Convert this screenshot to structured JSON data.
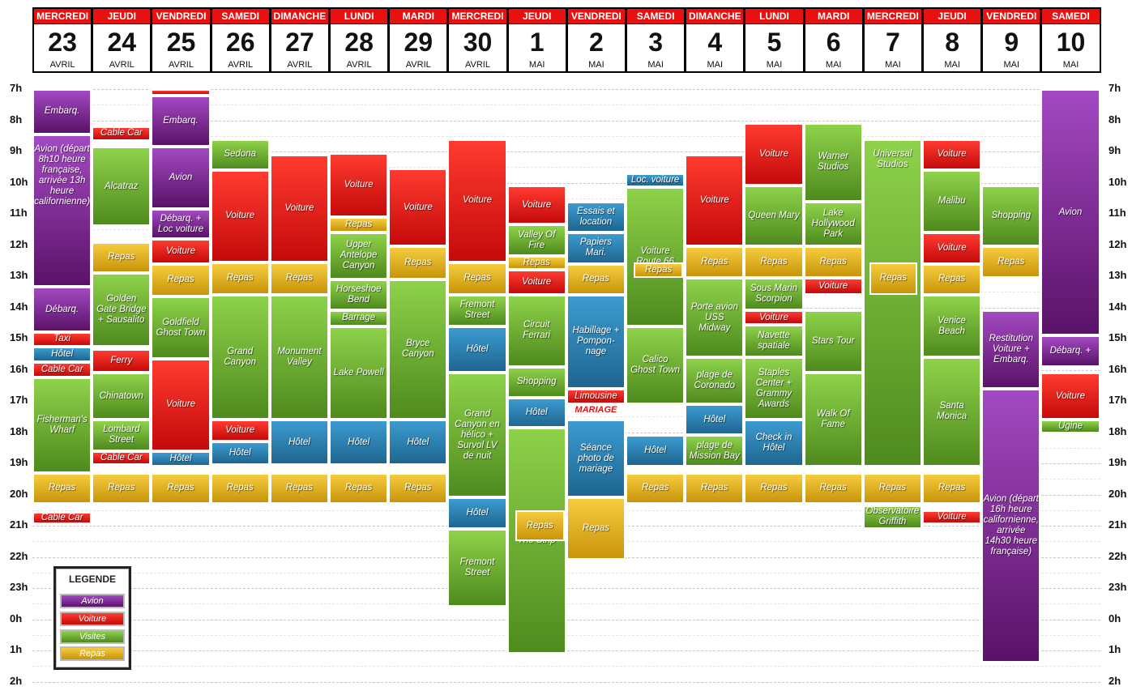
{
  "days": [
    {
      "name": "MERCREDI",
      "num": "23",
      "month": "AVRIL"
    },
    {
      "name": "JEUDI",
      "num": "24",
      "month": "AVRIL"
    },
    {
      "name": "VENDREDI",
      "num": "25",
      "month": "AVRIL"
    },
    {
      "name": "SAMEDI",
      "num": "26",
      "month": "AVRIL"
    },
    {
      "name": "DIMANCHE",
      "num": "27",
      "month": "AVRIL"
    },
    {
      "name": "LUNDI",
      "num": "28",
      "month": "AVRIL"
    },
    {
      "name": "MARDI",
      "num": "29",
      "month": "AVRIL"
    },
    {
      "name": "MERCREDI",
      "num": "30",
      "month": "AVRIL"
    },
    {
      "name": "JEUDI",
      "num": "1",
      "month": "MAI"
    },
    {
      "name": "VENDREDI",
      "num": "2",
      "month": "MAI"
    },
    {
      "name": "SAMEDI",
      "num": "3",
      "month": "MAI"
    },
    {
      "name": "DIMANCHE",
      "num": "4",
      "month": "MAI"
    },
    {
      "name": "LUNDI",
      "num": "5",
      "month": "MAI"
    },
    {
      "name": "MARDI",
      "num": "6",
      "month": "MAI"
    },
    {
      "name": "MERCREDI",
      "num": "7",
      "month": "MAI"
    },
    {
      "name": "JEUDI",
      "num": "8",
      "month": "MAI"
    },
    {
      "name": "VENDREDI",
      "num": "9",
      "month": "MAI"
    },
    {
      "name": "SAMEDI",
      "num": "10",
      "month": "MAI"
    }
  ],
  "hours": [
    "7h",
    "8h",
    "9h",
    "10h",
    "11h",
    "12h",
    "13h",
    "14h",
    "15h",
    "16h",
    "17h",
    "18h",
    "19h",
    "20h",
    "21h",
    "22h",
    "23h",
    "0h",
    "1h",
    "2h"
  ],
  "colors": {
    "avion": "#7b2a92",
    "voiture": "#e01a14",
    "visite": "#6cae33",
    "repas": "#e2b020",
    "hotel": "#2f82b4"
  },
  "events": [
    {
      "day": 0,
      "start": 7.0,
      "end": 8.45,
      "type": "avion",
      "label": "Embarq."
    },
    {
      "day": 0,
      "start": 8.45,
      "end": 13.35,
      "type": "avion",
      "label": "Avion (départ 8h10 heure française, arrivée 13h heure californienne)"
    },
    {
      "day": 0,
      "start": 13.35,
      "end": 14.8,
      "type": "avion",
      "label": "Débarq."
    },
    {
      "day": 0,
      "start": 14.8,
      "end": 15.25,
      "type": "taxi",
      "label": "Taxi"
    },
    {
      "day": 0,
      "start": 15.25,
      "end": 15.75,
      "type": "hotel",
      "label": "Hôtel"
    },
    {
      "day": 0,
      "start": 15.75,
      "end": 16.25,
      "type": "voiture",
      "label": "Cable Car"
    },
    {
      "day": 0,
      "start": 16.25,
      "end": 19.3,
      "type": "visite",
      "label": "Fisherman's Wharf"
    },
    {
      "day": 0,
      "start": 19.3,
      "end": 20.3,
      "type": "repas",
      "label": "Repas"
    },
    {
      "day": 0,
      "start": 20.55,
      "end": 20.95,
      "type": "voiture",
      "label": "Cable Car"
    },
    {
      "day": 1,
      "start": 8.2,
      "end": 8.65,
      "type": "voiture",
      "label": "Cable Car"
    },
    {
      "day": 1,
      "start": 8.85,
      "end": 11.4,
      "type": "visite",
      "label": "Alcatraz"
    },
    {
      "day": 1,
      "start": 11.9,
      "end": 12.9,
      "type": "repas",
      "label": "Repas"
    },
    {
      "day": 1,
      "start": 12.9,
      "end": 15.25,
      "type": "visite",
      "label": "Golden Gate Bridge + Sausalito"
    },
    {
      "day": 1,
      "start": 15.35,
      "end": 16.1,
      "type": "voiture",
      "label": "Ferry"
    },
    {
      "day": 1,
      "start": 16.1,
      "end": 17.6,
      "type": "visite",
      "label": "Chinatown"
    },
    {
      "day": 1,
      "start": 17.6,
      "end": 18.6,
      "type": "visite",
      "label": "Lombard Street"
    },
    {
      "day": 1,
      "start": 18.6,
      "end": 19.05,
      "type": "voiture",
      "label": "Cable Car"
    },
    {
      "day": 1,
      "start": 19.3,
      "end": 20.3,
      "type": "repas",
      "label": "Repas"
    },
    {
      "day": 2,
      "start": 7.0,
      "end": 7.2,
      "type": "voiture",
      "label": ""
    },
    {
      "day": 2,
      "start": 7.2,
      "end": 8.85,
      "type": "avion",
      "label": "Embarq."
    },
    {
      "day": 2,
      "start": 8.85,
      "end": 10.85,
      "type": "avion",
      "label": "Avion"
    },
    {
      "day": 2,
      "start": 10.85,
      "end": 11.8,
      "type": "avion",
      "label": "Débarq. + Loc voiture"
    },
    {
      "day": 2,
      "start": 11.8,
      "end": 12.6,
      "type": "voiture",
      "label": "Voiture"
    },
    {
      "day": 2,
      "start": 12.6,
      "end": 13.65,
      "type": "repas",
      "label": "Repas"
    },
    {
      "day": 2,
      "start": 13.65,
      "end": 15.65,
      "type": "visite",
      "label": "Goldfield Ghost Town"
    },
    {
      "day": 2,
      "start": 15.65,
      "end": 18.6,
      "type": "voiture",
      "label": "Voiture"
    },
    {
      "day": 2,
      "start": 18.6,
      "end": 19.1,
      "type": "hotel",
      "label": "Hôtel"
    },
    {
      "day": 2,
      "start": 19.3,
      "end": 20.3,
      "type": "repas",
      "label": "Repas"
    },
    {
      "day": 3,
      "start": 8.6,
      "end": 9.6,
      "type": "visite",
      "label": "Sedona"
    },
    {
      "day": 3,
      "start": 9.6,
      "end": 12.55,
      "type": "voiture",
      "label": "Voiture"
    },
    {
      "day": 3,
      "start": 12.55,
      "end": 13.6,
      "type": "repas",
      "label": "Repas"
    },
    {
      "day": 3,
      "start": 13.6,
      "end": 17.6,
      "type": "visite",
      "label": "Grand Canyon"
    },
    {
      "day": 3,
      "start": 17.6,
      "end": 18.3,
      "type": "voiture",
      "label": "Voiture"
    },
    {
      "day": 3,
      "start": 18.3,
      "end": 19.05,
      "type": "hotel",
      "label": "Hôtel"
    },
    {
      "day": 3,
      "start": 19.3,
      "end": 20.3,
      "type": "repas",
      "label": "Repas"
    },
    {
      "day": 4,
      "start": 9.1,
      "end": 12.55,
      "type": "voiture",
      "label": "Voiture"
    },
    {
      "day": 4,
      "start": 12.55,
      "end": 13.6,
      "type": "repas",
      "label": "Repas"
    },
    {
      "day": 4,
      "start": 13.6,
      "end": 17.6,
      "type": "visite",
      "label": "Monument Valley"
    },
    {
      "day": 4,
      "start": 17.6,
      "end": 19.05,
      "type": "hotel",
      "label": "Hôtel"
    },
    {
      "day": 4,
      "start": 19.3,
      "end": 20.3,
      "type": "repas",
      "label": "Repas"
    },
    {
      "day": 5,
      "start": 9.05,
      "end": 11.1,
      "type": "voiture",
      "label": "Voiture"
    },
    {
      "day": 5,
      "start": 11.1,
      "end": 11.6,
      "type": "repas",
      "label": "Repas"
    },
    {
      "day": 5,
      "start": 11.6,
      "end": 13.1,
      "type": "visite",
      "label": "Upper Antelope Canyon"
    },
    {
      "day": 5,
      "start": 13.1,
      "end": 14.1,
      "type": "visite",
      "label": "Horseshoe Bend"
    },
    {
      "day": 5,
      "start": 14.1,
      "end": 14.6,
      "type": "visite",
      "label": "Barrage"
    },
    {
      "day": 5,
      "start": 14.6,
      "end": 17.6,
      "type": "visite",
      "label": "Lake Powell"
    },
    {
      "day": 5,
      "start": 17.6,
      "end": 19.05,
      "type": "hotel",
      "label": "Hôtel"
    },
    {
      "day": 5,
      "start": 19.3,
      "end": 20.3,
      "type": "repas",
      "label": "Repas"
    },
    {
      "day": 6,
      "start": 9.55,
      "end": 12.05,
      "type": "voiture",
      "label": "Voiture"
    },
    {
      "day": 6,
      "start": 12.05,
      "end": 13.1,
      "type": "repas",
      "label": "Repas"
    },
    {
      "day": 6,
      "start": 13.1,
      "end": 17.6,
      "type": "visite",
      "label": "Bryce Canyon"
    },
    {
      "day": 6,
      "start": 17.6,
      "end": 19.05,
      "type": "hotel",
      "label": "Hôtel"
    },
    {
      "day": 6,
      "start": 19.3,
      "end": 20.3,
      "type": "repas",
      "label": "Repas"
    },
    {
      "day": 7,
      "start": 8.6,
      "end": 12.55,
      "type": "voiture",
      "label": "Voiture"
    },
    {
      "day": 7,
      "start": 12.55,
      "end": 13.6,
      "type": "repas",
      "label": "Repas"
    },
    {
      "day": 7,
      "start": 13.6,
      "end": 14.6,
      "type": "visite",
      "label": "Fremont Street"
    },
    {
      "day": 7,
      "start": 14.6,
      "end": 16.1,
      "type": "hotel",
      "label": "Hôtel"
    },
    {
      "day": 7,
      "start": 16.1,
      "end": 20.1,
      "type": "visite",
      "label": "Grand Canyon en hélico + Survol LV de nuit"
    },
    {
      "day": 7,
      "start": 20.1,
      "end": 21.1,
      "type": "hotel",
      "label": "Hôtel"
    },
    {
      "day": 7,
      "start": 21.1,
      "end": 23.6,
      "type": "visite",
      "label": "Fremont Street"
    },
    {
      "day": 8,
      "start": 10.1,
      "end": 11.35,
      "type": "voiture",
      "label": "Voiture"
    },
    {
      "day": 8,
      "start": 11.35,
      "end": 12.35,
      "type": "visite",
      "label": "Valley Of Fire"
    },
    {
      "day": 8,
      "start": 12.35,
      "end": 12.8,
      "type": "repas",
      "label": "Repas"
    },
    {
      "day": 8,
      "start": 12.8,
      "end": 13.6,
      "type": "voiture",
      "label": "Voiture"
    },
    {
      "day": 8,
      "start": 13.6,
      "end": 15.9,
      "type": "visite",
      "label": "Circuit Ferrari"
    },
    {
      "day": 8,
      "start": 15.9,
      "end": 16.9,
      "type": "visite",
      "label": "Shopping"
    },
    {
      "day": 8,
      "start": 16.9,
      "end": 17.85,
      "type": "hotel",
      "label": "Hôtel"
    },
    {
      "day": 8,
      "start": 17.85,
      "end": 25.1,
      "type": "visite",
      "label": "The Strip"
    },
    {
      "day": 9,
      "start": 10.6,
      "end": 11.6,
      "type": "hotel",
      "label": "Essais et location"
    },
    {
      "day": 9,
      "start": 11.6,
      "end": 12.6,
      "type": "hotel",
      "label": "Papiers Mari."
    },
    {
      "day": 9,
      "start": 12.6,
      "end": 13.6,
      "type": "repas",
      "label": "Repas"
    },
    {
      "day": 9,
      "start": 13.6,
      "end": 16.6,
      "type": "hotel",
      "label": "Habillage + Pompon-nage"
    },
    {
      "day": 9,
      "start": 16.6,
      "end": 17.1,
      "type": "voiture",
      "label": "Limousine"
    },
    {
      "day": 9,
      "start": 17.6,
      "end": 20.1,
      "type": "hotel",
      "label": "Séance photo de mariage"
    },
    {
      "day": 9,
      "start": 20.1,
      "end": 22.1,
      "type": "repas",
      "label": "Repas"
    },
    {
      "day": 10,
      "start": 9.7,
      "end": 10.15,
      "type": "hotel",
      "label": "Loc. voiture"
    },
    {
      "day": 10,
      "start": 10.15,
      "end": 14.6,
      "type": "visite",
      "label": "Voiture Route 66"
    },
    {
      "day": 10,
      "start": 14.6,
      "end": 17.1,
      "type": "visite",
      "label": "Calico Ghost Town"
    },
    {
      "day": 10,
      "start": 18.1,
      "end": 19.1,
      "type": "hotel",
      "label": "Hôtel"
    },
    {
      "day": 10,
      "start": 19.3,
      "end": 20.3,
      "type": "repas",
      "label": "Repas"
    },
    {
      "day": 11,
      "start": 9.1,
      "end": 12.05,
      "type": "voiture",
      "label": "Voiture"
    },
    {
      "day": 11,
      "start": 12.05,
      "end": 13.05,
      "type": "repas",
      "label": "Repas"
    },
    {
      "day": 11,
      "start": 13.05,
      "end": 15.6,
      "type": "visite",
      "label": "Porte avion USS Midway"
    },
    {
      "day": 11,
      "start": 15.6,
      "end": 17.1,
      "type": "visite",
      "label": "plage de Coronado"
    },
    {
      "day": 11,
      "start": 17.1,
      "end": 18.1,
      "type": "hotel",
      "label": "Hôtel"
    },
    {
      "day": 11,
      "start": 18.1,
      "end": 19.1,
      "type": "visite",
      "label": "plage de Mission Bay"
    },
    {
      "day": 11,
      "start": 19.3,
      "end": 20.3,
      "type": "repas",
      "label": "Repas"
    },
    {
      "day": 12,
      "start": 8.1,
      "end": 10.1,
      "type": "voiture",
      "label": "Voiture"
    },
    {
      "day": 12,
      "start": 10.1,
      "end": 12.05,
      "type": "visite",
      "label": "Queen Mary"
    },
    {
      "day": 12,
      "start": 12.05,
      "end": 13.05,
      "type": "repas",
      "label": "Repas"
    },
    {
      "day": 12,
      "start": 13.05,
      "end": 14.1,
      "type": "visite",
      "label": "Sous Marin Scorpion"
    },
    {
      "day": 12,
      "start": 14.1,
      "end": 14.55,
      "type": "voiture",
      "label": "Voiture"
    },
    {
      "day": 12,
      "start": 14.55,
      "end": 15.6,
      "type": "visite",
      "label": "Navette spatiale"
    },
    {
      "day": 12,
      "start": 15.6,
      "end": 17.6,
      "type": "visite",
      "label": "Staples Center + Grammy Awards"
    },
    {
      "day": 12,
      "start": 17.6,
      "end": 19.1,
      "type": "hotel",
      "label": "Check in Hôtel"
    },
    {
      "day": 12,
      "start": 19.3,
      "end": 20.3,
      "type": "repas",
      "label": "Repas"
    },
    {
      "day": 13,
      "start": 8.1,
      "end": 10.6,
      "type": "visite",
      "label": "Warner Studios"
    },
    {
      "day": 13,
      "start": 10.6,
      "end": 12.05,
      "type": "visite",
      "label": "Lake Hollywood Park"
    },
    {
      "day": 13,
      "start": 12.05,
      "end": 13.05,
      "type": "repas",
      "label": "Repas"
    },
    {
      "day": 13,
      "start": 13.05,
      "end": 13.6,
      "type": "voiture",
      "label": "Voiture"
    },
    {
      "day": 13,
      "start": 14.1,
      "end": 16.1,
      "type": "visite",
      "label": "Stars Tour"
    },
    {
      "day": 13,
      "start": 16.1,
      "end": 19.1,
      "type": "visite",
      "label": "Walk Of Fame"
    },
    {
      "day": 13,
      "start": 19.3,
      "end": 20.3,
      "type": "repas",
      "label": "Repas"
    },
    {
      "day": 14,
      "start": 8.6,
      "end": 19.1,
      "type": "visite",
      "label": "Universal Studios"
    },
    {
      "day": 14,
      "start": 12.55,
      "end": 13.6,
      "type": "repas",
      "label": "Repas"
    },
    {
      "day": 14,
      "start": 19.3,
      "end": 20.3,
      "type": "repas",
      "label": "Repas"
    },
    {
      "day": 14,
      "start": 20.35,
      "end": 21.1,
      "type": "visite",
      "label": "Observatoire Griffith"
    },
    {
      "day": 15,
      "start": 8.6,
      "end": 9.6,
      "type": "voiture",
      "label": "Voiture"
    },
    {
      "day": 15,
      "start": 9.6,
      "end": 11.6,
      "type": "visite",
      "label": "Malibu"
    },
    {
      "day": 15,
      "start": 11.6,
      "end": 12.6,
      "type": "voiture",
      "label": "Voiture"
    },
    {
      "day": 15,
      "start": 12.6,
      "end": 13.6,
      "type": "repas",
      "label": "Repas"
    },
    {
      "day": 15,
      "start": 13.6,
      "end": 15.6,
      "type": "visite",
      "label": "Venice Beach"
    },
    {
      "day": 15,
      "start": 15.6,
      "end": 19.1,
      "type": "visite",
      "label": "Santa Monica"
    },
    {
      "day": 15,
      "start": 19.3,
      "end": 20.3,
      "type": "repas",
      "label": "Repas"
    },
    {
      "day": 15,
      "start": 20.5,
      "end": 20.95,
      "type": "voiture",
      "label": "Voiture"
    },
    {
      "day": 16,
      "start": 10.1,
      "end": 12.05,
      "type": "visite",
      "label": "Shopping"
    },
    {
      "day": 16,
      "start": 12.05,
      "end": 13.05,
      "type": "repas",
      "label": "Repas"
    },
    {
      "day": 16,
      "start": 14.1,
      "end": 16.6,
      "type": "avion",
      "label": "Restitution Voiture + Embarq."
    },
    {
      "day": 16,
      "start": 16.6,
      "end": 25.4,
      "type": "avion",
      "label": "Avion (départ 16h heure californienne, arrivée 14h30 heure française)"
    },
    {
      "day": 17,
      "start": 7.0,
      "end": 14.9,
      "type": "avion",
      "label": "Avion"
    },
    {
      "day": 17,
      "start": 14.9,
      "end": 15.9,
      "type": "avion",
      "label": "Débarq. +"
    },
    {
      "day": 17,
      "start": 16.1,
      "end": 17.6,
      "type": "voiture",
      "label": "Voiture"
    },
    {
      "day": 17,
      "start": 17.6,
      "end": 18.05,
      "type": "visite",
      "label": "Ugine"
    }
  ],
  "mariage_label": "MARIAGE",
  "legend": {
    "title": "LEGENDE",
    "items": [
      {
        "type": "avion",
        "label": "Avion"
      },
      {
        "type": "voiture",
        "label": "Voiture"
      },
      {
        "type": "visite",
        "label": "Visites"
      },
      {
        "type": "repas",
        "label": "Repas"
      }
    ]
  }
}
